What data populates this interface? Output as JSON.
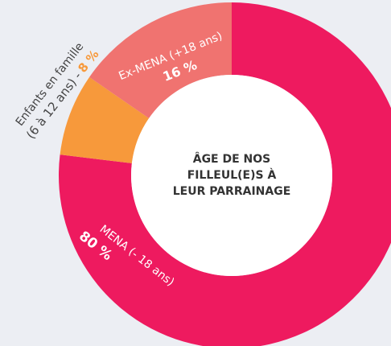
{
  "chart_data": {
    "type": "donut",
    "title": [
      "ÂGE DE NOS",
      "FILLEUL(E)S À",
      "LEUR PARRAINAGE"
    ],
    "categories": [
      [
        "MENA (- 18 ans)"
      ],
      [
        "Enfants en famille",
        "(6 à 12 ans) -"
      ],
      [
        "Ex-MENA (+18 ans)"
      ]
    ],
    "values": [
      80,
      8,
      16
    ],
    "value_labels": [
      "80 %",
      "8 %",
      "16 %"
    ],
    "colors": [
      "#ee1a5f",
      "#f7993b",
      "#f07370"
    ]
  }
}
